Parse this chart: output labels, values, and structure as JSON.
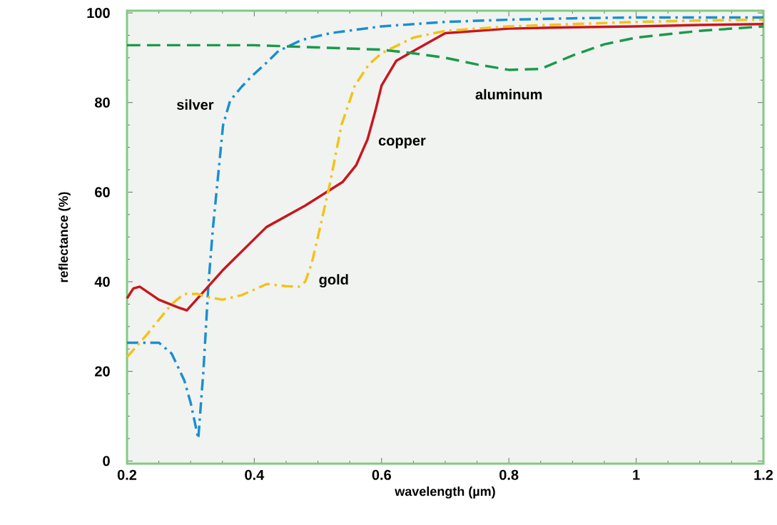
{
  "chart_data": {
    "type": "line",
    "xlabel": "wavelength (µm)",
    "ylabel": "reflectance (%)",
    "xlim": [
      0.2,
      1.2
    ],
    "ylim": [
      -0.6,
      100.5
    ],
    "xticks": [
      0.2,
      0.4,
      0.6,
      0.8,
      1,
      1.2
    ],
    "yticks": [
      0,
      20,
      40,
      60,
      80,
      100
    ],
    "grid": false,
    "legend": false,
    "marker": "none",
    "series": [
      {
        "name": "silver",
        "color": "#1a8fd0",
        "line_style": "dashdot",
        "x": [
          0.2,
          0.25,
          0.27,
          0.29,
          0.3,
          0.312,
          0.32,
          0.328,
          0.335,
          0.342,
          0.351,
          0.362,
          0.38,
          0.397,
          0.42,
          0.438,
          0.475,
          0.52,
          0.6,
          0.7,
          0.8,
          0.9,
          1.0,
          1.1,
          1.2
        ],
        "values": [
          26.4,
          26.4,
          24,
          18,
          13,
          5,
          20,
          39.5,
          52,
          62,
          75,
          80.4,
          83.5,
          86,
          89,
          91.5,
          94,
          95.5,
          97,
          98,
          98.5,
          98.8,
          99,
          99,
          99
        ]
      },
      {
        "name": "copper",
        "color": "#c8161d",
        "line_style": "solid",
        "x": [
          0.2,
          0.21,
          0.22,
          0.25,
          0.28,
          0.294,
          0.35,
          0.419,
          0.48,
          0.539,
          0.56,
          0.578,
          0.59,
          0.6,
          0.623,
          0.656,
          0.7,
          0.8,
          0.9,
          1.0,
          1.1,
          1.2
        ],
        "values": [
          36.3,
          38.5,
          38.9,
          36,
          34.3,
          33.6,
          42.5,
          52.2,
          57,
          62.3,
          66,
          71.8,
          78,
          83.8,
          89.3,
          92,
          95.5,
          96.5,
          96.8,
          97,
          97.3,
          97.5
        ]
      },
      {
        "name": "gold",
        "color": "#f2c318",
        "line_style": "dashdot",
        "x": [
          0.2,
          0.23,
          0.25,
          0.27,
          0.29,
          0.31,
          0.33,
          0.35,
          0.38,
          0.42,
          0.45,
          0.47,
          0.48,
          0.49,
          0.5,
          0.519,
          0.537,
          0.558,
          0.58,
          0.6,
          0.65,
          0.7,
          0.8,
          0.9,
          1.0,
          1.1,
          1.2
        ],
        "values": [
          23.2,
          28,
          31.5,
          35,
          37.3,
          37.3,
          36.5,
          36,
          37,
          39.5,
          39,
          38.9,
          40,
          44,
          50,
          62,
          75,
          83.8,
          88.5,
          91,
          94.5,
          96,
          97,
          97.5,
          98,
          98.3,
          98.5
        ]
      },
      {
        "name": "aluminum",
        "color": "#1a9a4a",
        "line_style": "dashed",
        "x": [
          0.2,
          0.3,
          0.4,
          0.5,
          0.6,
          0.65,
          0.7,
          0.75,
          0.8,
          0.85,
          0.9,
          0.95,
          1.0,
          1.1,
          1.2
        ],
        "values": [
          92.8,
          92.8,
          92.8,
          92.3,
          91.8,
          91,
          90,
          88.5,
          87.3,
          87.5,
          90.5,
          93,
          94.5,
          96,
          97
        ]
      }
    ]
  }
}
